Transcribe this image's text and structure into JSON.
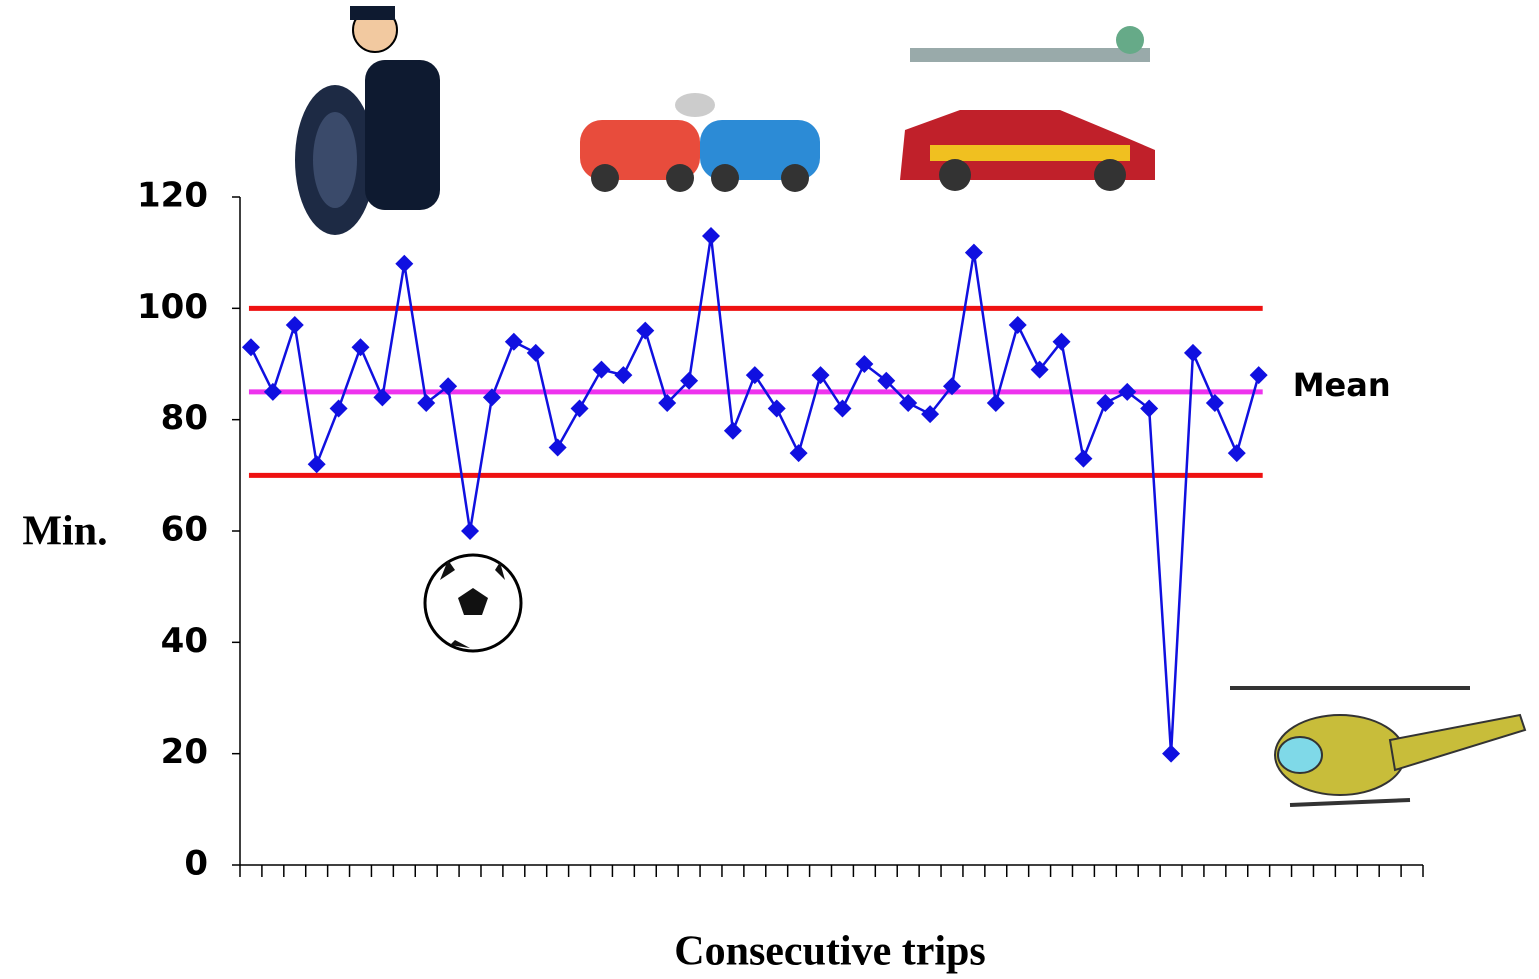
{
  "chart_data": {
    "type": "line",
    "y_label": "Min.",
    "x_label": "Consecutive trips",
    "x": [
      1,
      2,
      3,
      4,
      5,
      6,
      7,
      8,
      9,
      10,
      11,
      12,
      13,
      14,
      15,
      16,
      17,
      18,
      19,
      20,
      21,
      22,
      23,
      24,
      25,
      26,
      27,
      28,
      29,
      30,
      31,
      32,
      33,
      34,
      35,
      36,
      37,
      38,
      39,
      40,
      41,
      42,
      43,
      44,
      45,
      46,
      47
    ],
    "series": [
      {
        "color": "#1010e0",
        "values": [
          93,
          85,
          97,
          72,
          82,
          93,
          84,
          108,
          83,
          86,
          60,
          84,
          94,
          92,
          75,
          82,
          89,
          88,
          96,
          83,
          87,
          113,
          78,
          88,
          82,
          74,
          88,
          82,
          90,
          87,
          83,
          81,
          86,
          110,
          83,
          97,
          89,
          94,
          73,
          83,
          85,
          82,
          20,
          92,
          83,
          74,
          88
        ]
      }
    ],
    "reference_lines": [
      {
        "value": 100,
        "color": "#ee1111"
      },
      {
        "value": 85,
        "color": "#ee33ee",
        "label": "Mean"
      },
      {
        "value": 70,
        "color": "#ee1111"
      }
    ],
    "xlim": [
      0.5,
      54.5
    ],
    "xticks": [
      0.5,
      1.5,
      2.5,
      3.5,
      4.5,
      5.5,
      6.5,
      7.5,
      8.5,
      9.5,
      10.5,
      11.5,
      12.5,
      13.5,
      14.5,
      15.5,
      16.5,
      17.5,
      18.5,
      19.5,
      20.5,
      21.5,
      22.5,
      23.5,
      24.5,
      25.5,
      26.5,
      27.5,
      28.5,
      29.5,
      30.5,
      31.5,
      32.5,
      33.5,
      34.5,
      35.5,
      36.5,
      37.5,
      38.5,
      39.5,
      40.5,
      41.5,
      42.5,
      43.5,
      44.5,
      45.5,
      46.5,
      47.5,
      48.5,
      49.5,
      50.5,
      51.5,
      52.5,
      53.5,
      54.5
    ],
    "ylim": [
      0,
      120
    ],
    "yticks": [
      0,
      20,
      40,
      60,
      80,
      100,
      120
    ]
  }
}
